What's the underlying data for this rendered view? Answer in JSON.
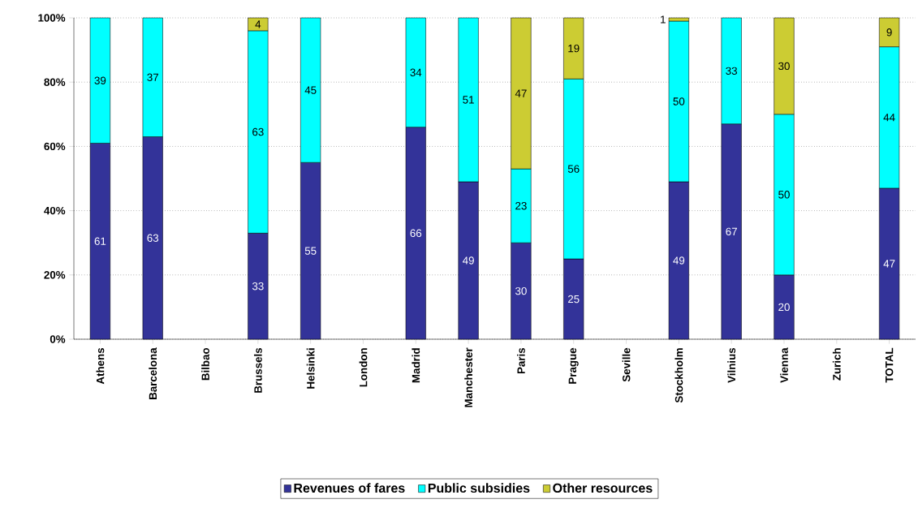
{
  "chart_data": {
    "type": "bar",
    "stacked": true,
    "data_labels": true,
    "grid": "y",
    "legend": "bottom",
    "categories": [
      "Athens",
      "Barcelona",
      "Bilbao",
      "Brussels",
      "Helsinki",
      "London",
      "Madrid",
      "Manchester",
      "Paris",
      "Prague",
      "Seville",
      "Stockholm",
      "Vilnius",
      "Vienna",
      "Zurich",
      "TOTAL"
    ],
    "ylim": [
      0,
      100
    ],
    "yticks": [
      {
        "value": 0,
        "label": "0%"
      },
      {
        "value": 20,
        "label": "20%"
      },
      {
        "value": 40,
        "label": "40%"
      },
      {
        "value": 60,
        "label": "60%"
      },
      {
        "value": 80,
        "label": "80%"
      },
      {
        "value": 100,
        "label": "100%"
      }
    ],
    "series": [
      {
        "name": "Revenues of fares",
        "color": "#333399",
        "values": [
          61,
          63,
          null,
          33,
          55,
          null,
          66,
          49,
          30,
          25,
          null,
          49,
          67,
          20,
          null,
          47
        ]
      },
      {
        "name": "Public subsidies",
        "color": "#00ffff",
        "values": [
          39,
          37,
          null,
          63,
          45,
          null,
          34,
          51,
          23,
          56,
          null,
          50,
          33,
          50,
          null,
          44
        ]
      },
      {
        "name": "Other resources",
        "color": "#cccc33",
        "values": [
          null,
          null,
          null,
          4,
          null,
          null,
          null,
          null,
          47,
          19,
          null,
          1,
          null,
          30,
          null,
          9
        ]
      }
    ]
  }
}
